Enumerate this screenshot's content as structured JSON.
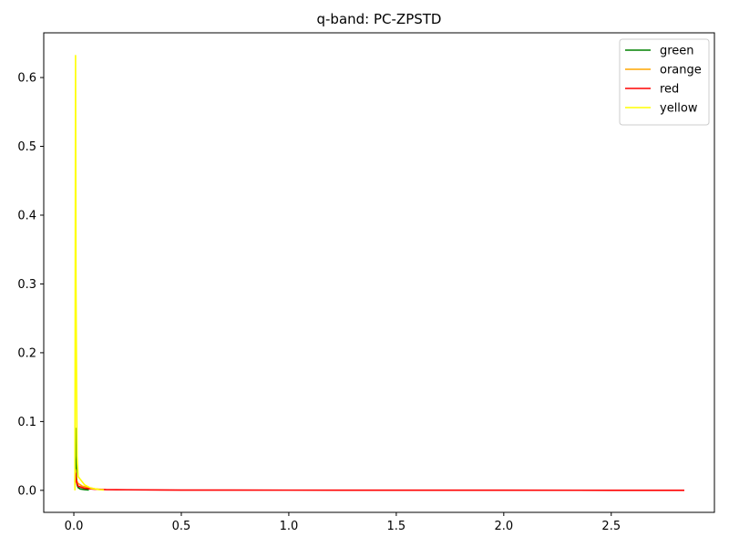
{
  "chart_data": {
    "type": "line",
    "title": "q-band: PC-ZPSTD",
    "xlabel": "",
    "ylabel": "",
    "xlim": [
      -0.14,
      2.98
    ],
    "ylim": [
      -0.032,
      0.665
    ],
    "xticks": [
      0.0,
      0.5,
      1.0,
      1.5,
      2.0,
      2.5
    ],
    "xtick_labels": [
      "0.0",
      "0.5",
      "1.0",
      "1.5",
      "2.0",
      "2.5"
    ],
    "yticks": [
      0.0,
      0.1,
      0.2,
      0.3,
      0.4,
      0.5,
      0.6
    ],
    "ytick_labels": [
      "0.0",
      "0.1",
      "0.2",
      "0.3",
      "0.4",
      "0.5",
      "0.6"
    ],
    "grid": false,
    "legend_position": "top-right",
    "series": [
      {
        "name": "green",
        "color": "#008000",
        "x": [
          0.005,
          0.008,
          0.01,
          0.012,
          0.015,
          0.02,
          0.03,
          0.05,
          0.07
        ],
        "y": [
          0.012,
          0.09,
          0.05,
          0.02,
          0.008,
          0.004,
          0.002,
          0.001,
          0.0005
        ]
      },
      {
        "name": "orange",
        "color": "#ffa500",
        "x": [
          0.005,
          0.008,
          0.012,
          0.02,
          0.04,
          0.07,
          0.1,
          0.14
        ],
        "y": [
          0.008,
          0.03,
          0.015,
          0.01,
          0.006,
          0.004,
          0.002,
          0.001
        ]
      },
      {
        "name": "red",
        "color": "#ff0000",
        "x": [
          0.005,
          0.008,
          0.012,
          0.02,
          0.05,
          0.1,
          0.15,
          0.25,
          0.4,
          0.5,
          1.0,
          1.5,
          2.0,
          2.5,
          2.84
        ],
        "y": [
          0.02,
          0.025,
          0.012,
          0.006,
          0.003,
          0.0015,
          0.001,
          0.0008,
          0.0006,
          0.0004,
          0.0003,
          0.0002,
          0.0002,
          0.0001,
          0.0001
        ]
      },
      {
        "name": "yellow",
        "color": "#ffff00",
        "x": [
          0.005,
          0.008,
          0.01,
          0.015,
          0.02,
          0.05,
          0.08,
          0.12,
          0.14
        ],
        "y": [
          0.0,
          0.632,
          0.3,
          0.05,
          0.02,
          0.008,
          0.003,
          0.001,
          0.0005
        ]
      }
    ]
  }
}
